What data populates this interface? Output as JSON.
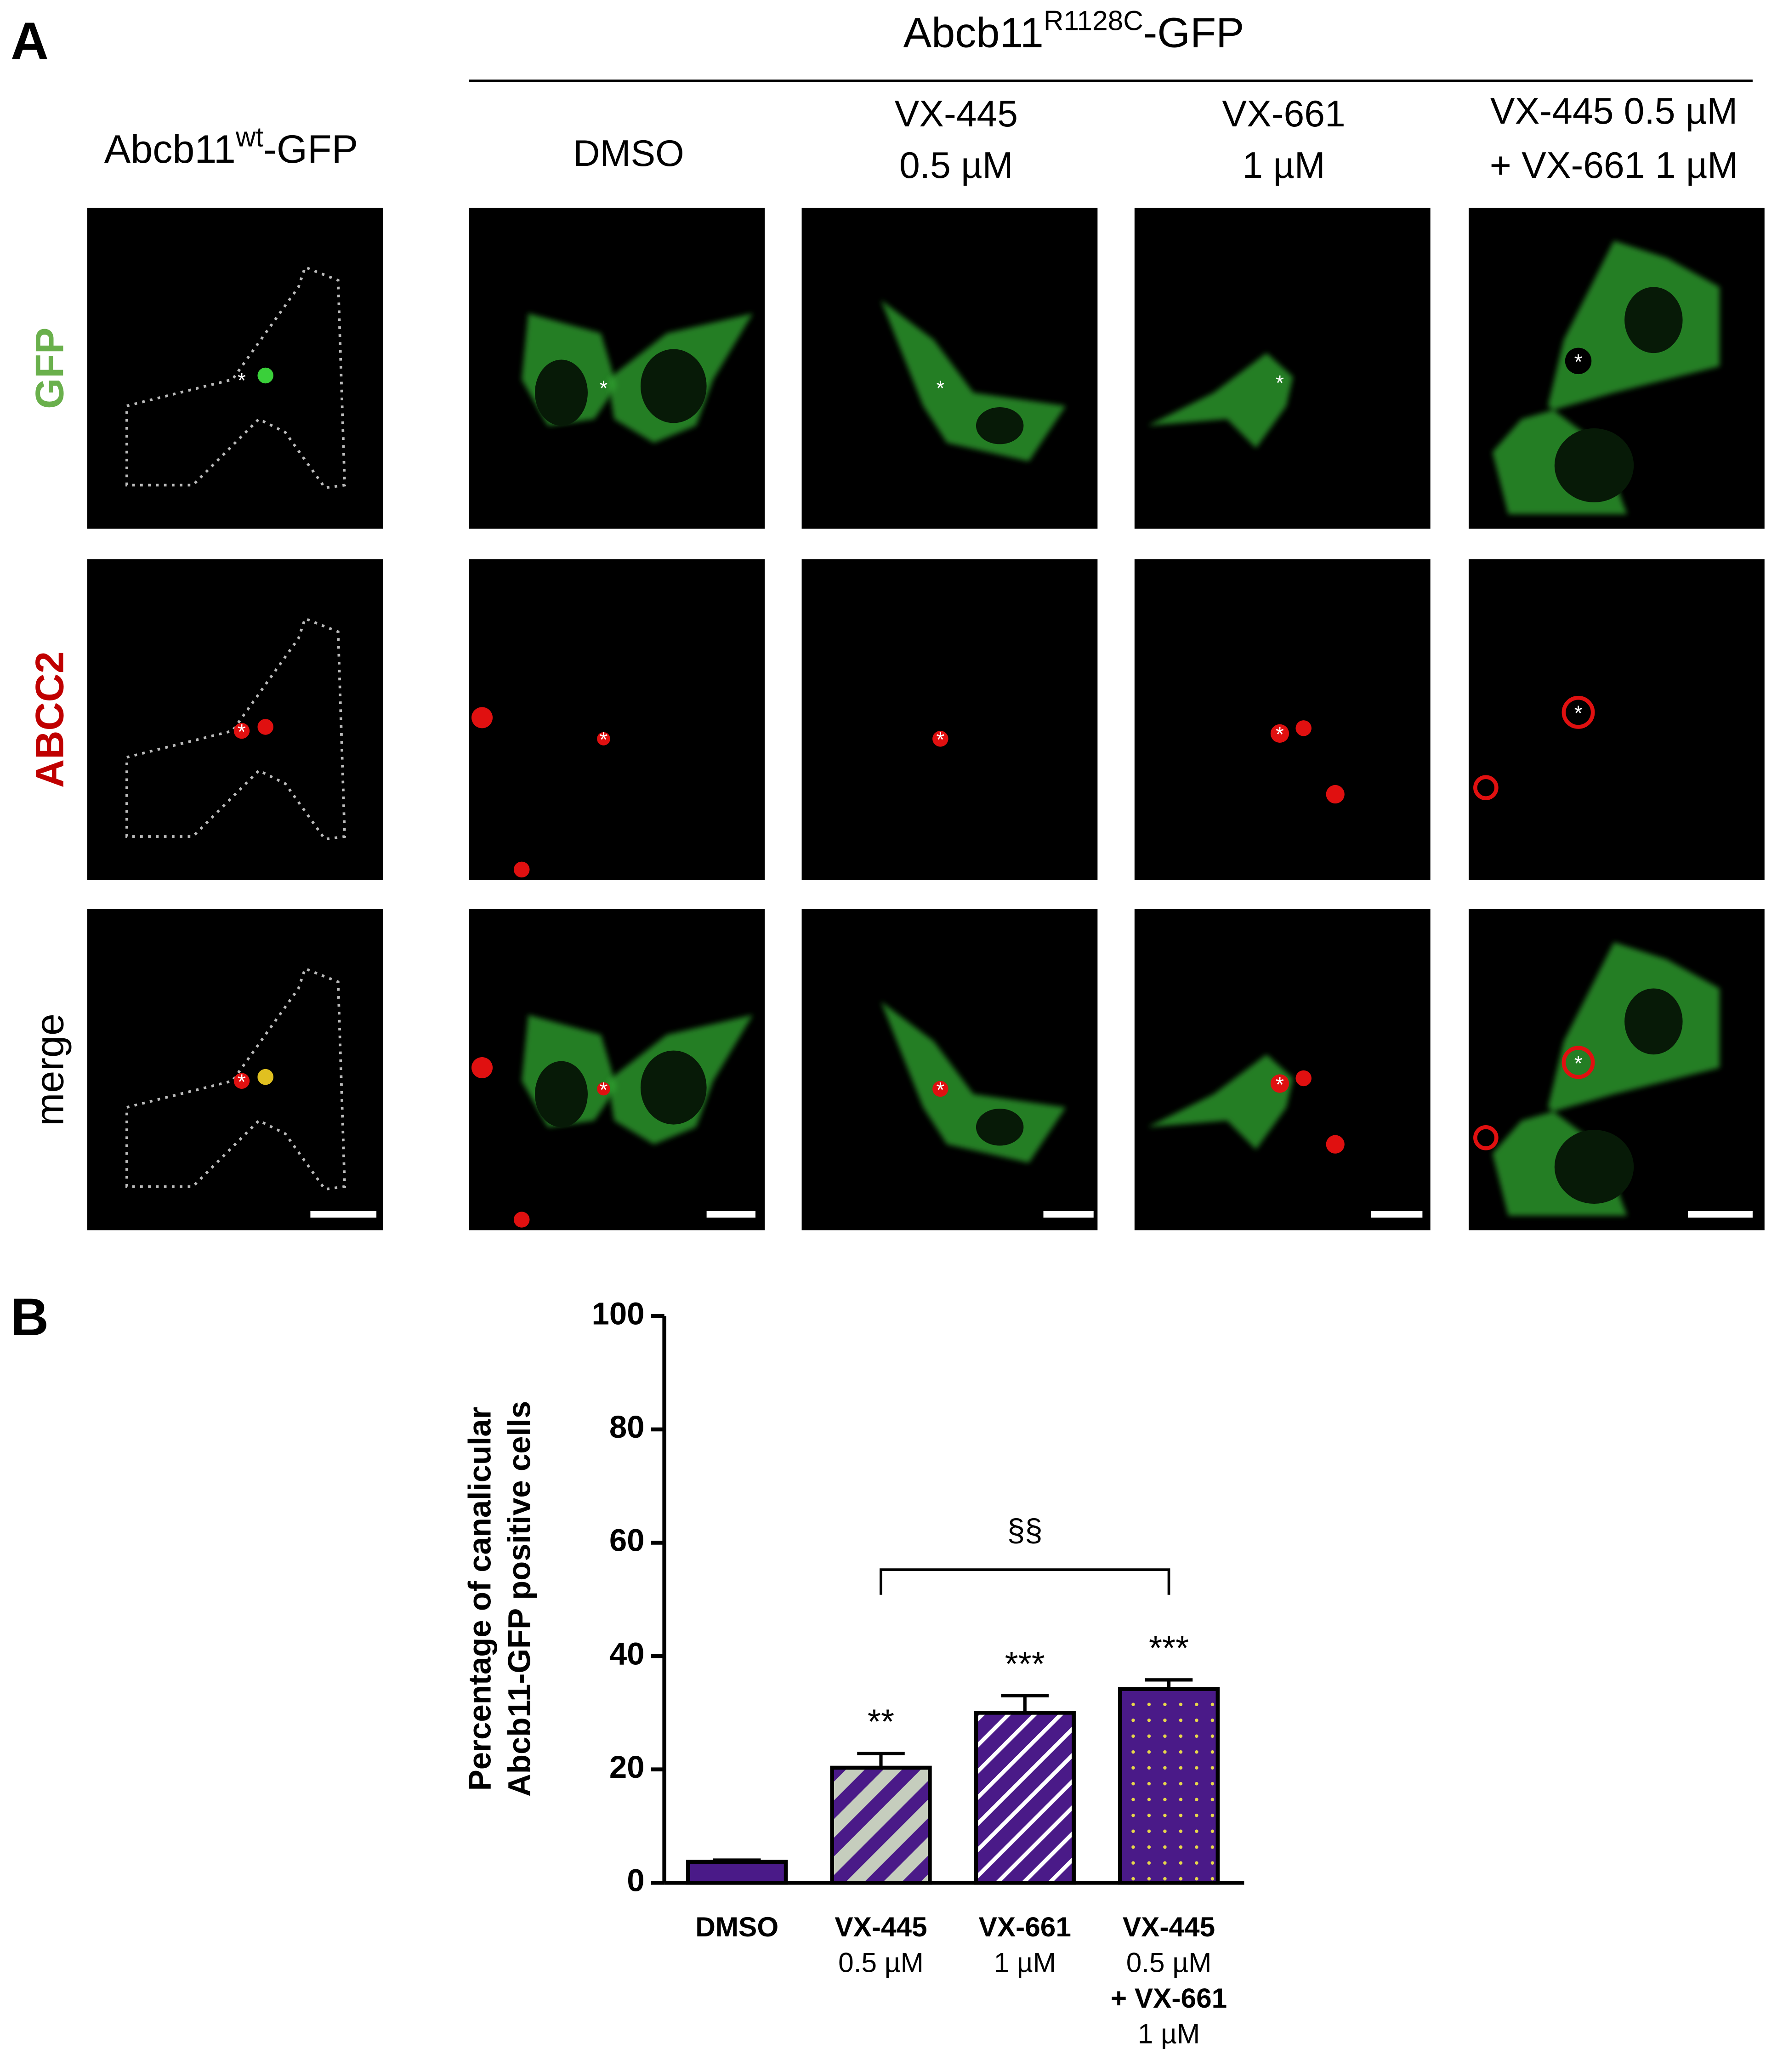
{
  "panel_a": {
    "label": "A",
    "group_title": {
      "base": "Abcb11",
      "sup": "R1128C",
      "suffix": "-GFP"
    },
    "wt_title": {
      "base": "Abcb11",
      "sup": "wt",
      "suffix": "-GFP"
    },
    "columns": [
      [
        "DMSO"
      ],
      [
        "VX-445",
        "0.5 µM"
      ],
      [
        "VX-661",
        "1 µM"
      ],
      [
        "VX-445 0.5 µM",
        "+ VX-661 1 µM"
      ]
    ],
    "rows": [
      "GFP",
      "ABCC2",
      "merge"
    ],
    "marker": "*"
  },
  "panel_b_label": "B",
  "chart_data": {
    "type": "bar",
    "ylabel": [
      "Percentage of canalicular",
      "Abcb11-GFP positive cells"
    ],
    "categories": [
      [
        "DMSO"
      ],
      [
        "VX-445",
        "0.5 µM"
      ],
      [
        "VX-661",
        "1 µM"
      ],
      [
        "VX-445",
        "0.5 µM",
        "+ VX-661",
        "1 µM"
      ]
    ],
    "values": [
      3.7,
      20.3,
      30,
      34.2
    ],
    "errors": [
      0.3,
      2.5,
      3.0,
      1.6
    ],
    "color": "#4a1a88",
    "patterns": [
      "solid",
      "stripes-grey",
      "stripes-white",
      "dots-yellow"
    ],
    "ylim": [
      0,
      100
    ],
    "yticks": [
      0,
      20,
      40,
      60,
      80,
      100
    ],
    "significance": [
      {
        "category": 1,
        "text": "**"
      },
      {
        "category": 2,
        "text": "***"
      },
      {
        "category": 3,
        "text": "***"
      }
    ],
    "bracket": {
      "from": 1,
      "to": 3,
      "text": "§§"
    }
  }
}
